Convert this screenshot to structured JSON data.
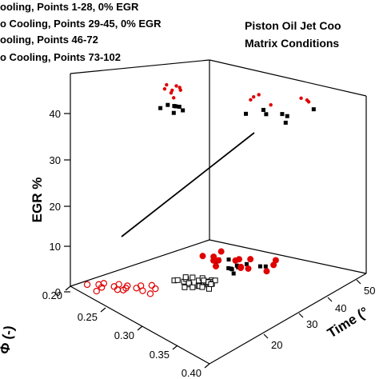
{
  "chart_data": {
    "type": "scatter",
    "title_lines": [
      "Piston Oil Jet Coo",
      "Matrix Conditions"
    ],
    "legend": [
      "ooling, Points 1-28, 0% EGR",
      "o Cooling, Points 29-45, 0% EGR",
      "ooling, Points 46-72",
      "o Cooling, Points 73-102"
    ],
    "axes": {
      "phi": {
        "label": "Φ (-)",
        "ticks": [
          "0.20",
          "0.25",
          "0.30",
          "0.35",
          "0.40"
        ]
      },
      "egr": {
        "label": "EGR %",
        "ticks": [
          "0",
          "10",
          "20",
          "30",
          "40"
        ]
      },
      "time": {
        "label": "Time (°",
        "ticks": [
          "20",
          "30",
          "40",
          "50"
        ]
      }
    },
    "colors": {
      "cooling": "#000000",
      "no_cooling": "#e00000"
    },
    "series": [
      {
        "name": "ooling, Points 1-28, 0% EGR",
        "marker": "open-square",
        "color": "#000000",
        "points": [
          [
            0.29,
            3.2
          ],
          [
            0.291,
            2.6
          ],
          [
            0.292,
            3.8
          ],
          [
            0.293,
            2.1
          ],
          [
            0.294,
            3.0
          ],
          [
            0.295,
            3.6
          ],
          [
            0.296,
            2.4
          ],
          [
            0.297,
            3.3
          ],
          [
            0.298,
            2.8
          ],
          [
            0.299,
            1.9
          ],
          [
            0.3,
            3.1
          ],
          [
            0.301,
            2.5
          ],
          [
            0.302,
            3.7
          ],
          [
            0.303,
            2.2
          ],
          [
            0.304,
            3.4
          ],
          [
            0.305,
            2.7
          ],
          [
            0.306,
            3.0
          ],
          [
            0.307,
            2.3
          ],
          [
            0.308,
            3.5
          ],
          [
            0.309,
            2.6
          ],
          [
            0.31,
            3.2
          ],
          [
            0.311,
            2.0
          ],
          [
            0.312,
            2.9
          ],
          [
            0.313,
            3.3
          ],
          [
            0.314,
            2.4
          ],
          [
            0.315,
            3.1
          ],
          [
            0.316,
            2.8
          ],
          [
            0.317,
            2.2
          ]
        ]
      },
      {
        "name": "o Cooling, Points 29-45, 0% EGR",
        "marker": "open-circle",
        "color": "#e00000",
        "points": [
          [
            0.255,
            3.0
          ],
          [
            0.258,
            2.4
          ],
          [
            0.262,
            3.3
          ],
          [
            0.266,
            2.7
          ],
          [
            0.27,
            3.6
          ],
          [
            0.274,
            2.9
          ],
          [
            0.278,
            2.2
          ],
          [
            0.282,
            3.1
          ],
          [
            0.286,
            2.6
          ],
          [
            0.29,
            3.4
          ],
          [
            0.294,
            2.0
          ],
          [
            0.298,
            2.8
          ],
          [
            0.302,
            3.2
          ],
          [
            0.306,
            2.5
          ],
          [
            0.31,
            3.0
          ],
          [
            0.314,
            1.8
          ],
          [
            0.318,
            2.3
          ]
        ]
      },
      {
        "name": "ooling, Points 46-72",
        "marker": "filled-square",
        "color": "#000000",
        "points": [
          [
            0.33,
            41
          ],
          [
            0.331,
            40
          ],
          [
            0.332,
            42
          ],
          [
            0.333,
            39
          ],
          [
            0.334,
            43
          ],
          [
            0.335,
            41
          ],
          [
            0.336,
            40
          ],
          [
            0.337,
            38
          ],
          [
            0.338,
            42
          ],
          [
            0.339,
            41
          ],
          [
            0.34,
            39
          ],
          [
            0.341,
            43
          ],
          [
            0.342,
            40
          ],
          [
            0.343,
            41
          ],
          [
            0.33,
            11
          ],
          [
            0.332,
            12
          ],
          [
            0.334,
            10
          ],
          [
            0.336,
            11
          ],
          [
            0.338,
            9
          ],
          [
            0.34,
            12
          ],
          [
            0.342,
            10
          ],
          [
            0.344,
            11
          ],
          [
            0.346,
            9
          ],
          [
            0.348,
            10
          ],
          [
            0.35,
            12
          ],
          [
            0.352,
            9
          ],
          [
            0.354,
            11
          ]
        ]
      },
      {
        "name": "o Cooling, Points 73-102",
        "marker": "filled-circle",
        "color": "#e00000",
        "points": [
          [
            0.33,
            45
          ],
          [
            0.331,
            44
          ],
          [
            0.332,
            46
          ],
          [
            0.333,
            43
          ],
          [
            0.334,
            45
          ],
          [
            0.335,
            44
          ],
          [
            0.336,
            46
          ],
          [
            0.337,
            43
          ],
          [
            0.338,
            45
          ],
          [
            0.339,
            44
          ],
          [
            0.34,
            46
          ],
          [
            0.341,
            43
          ],
          [
            0.342,
            45
          ],
          [
            0.343,
            44
          ],
          [
            0.344,
            46
          ],
          [
            0.332,
            12
          ],
          [
            0.334,
            11
          ],
          [
            0.336,
            13
          ],
          [
            0.338,
            12
          ],
          [
            0.34,
            11
          ],
          [
            0.342,
            13
          ],
          [
            0.344,
            12
          ],
          [
            0.346,
            11
          ],
          [
            0.348,
            13
          ],
          [
            0.35,
            12
          ],
          [
            0.352,
            11
          ],
          [
            0.354,
            12
          ],
          [
            0.356,
            10
          ],
          [
            0.358,
            11
          ],
          [
            0.36,
            9
          ]
        ]
      }
    ]
  }
}
